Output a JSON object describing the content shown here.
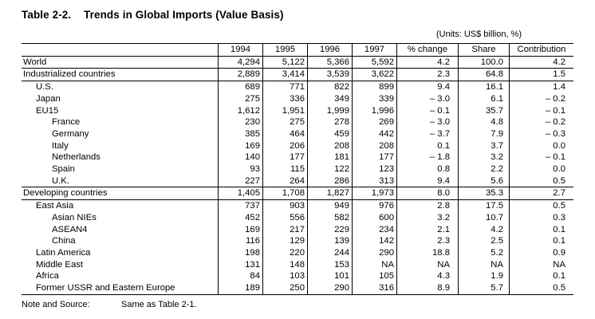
{
  "title": {
    "number": "Table 2-2.",
    "text": "Trends in Global Imports (Value Basis)"
  },
  "units": "(Units: US$ billion, %)",
  "columns": [
    "1994",
    "1995",
    "1996",
    "1997",
    "% change",
    "Share",
    "Contribution"
  ],
  "rows": [
    {
      "label": "World",
      "indent": 0,
      "sep": false,
      "values": [
        "4,294",
        "5,122",
        "5,366",
        "5,592",
        "4.2",
        "100.0",
        "4.2"
      ]
    },
    {
      "label": "Industrialized countries",
      "indent": 0,
      "sep": true,
      "values": [
        "2,889",
        "3,414",
        "3,539",
        "3,622",
        "2.3",
        "64.8",
        "1.5"
      ]
    },
    {
      "label": "U.S.",
      "indent": 1,
      "sep": true,
      "values": [
        "689",
        "771",
        "822",
        "899",
        "9.4",
        "16.1",
        "1.4"
      ]
    },
    {
      "label": "Japan",
      "indent": 1,
      "sep": false,
      "values": [
        "275",
        "336",
        "349",
        "339",
        "– 3.0",
        "6.1",
        "– 0.2"
      ]
    },
    {
      "label": "EU15",
      "indent": 1,
      "sep": false,
      "values": [
        "1,612",
        "1,951",
        "1,999",
        "1,996",
        "– 0.1",
        "35.7",
        "– 0.1"
      ]
    },
    {
      "label": "France",
      "indent": 2,
      "sep": false,
      "values": [
        "230",
        "275",
        "278",
        "269",
        "– 3.0",
        "4.8",
        "– 0.2"
      ]
    },
    {
      "label": "Germany",
      "indent": 2,
      "sep": false,
      "values": [
        "385",
        "464",
        "459",
        "442",
        "– 3.7",
        "7.9",
        "– 0.3"
      ]
    },
    {
      "label": "Italy",
      "indent": 2,
      "sep": false,
      "values": [
        "169",
        "206",
        "208",
        "208",
        "0.1",
        "3.7",
        "0.0"
      ]
    },
    {
      "label": "Netherlands",
      "indent": 2,
      "sep": false,
      "values": [
        "140",
        "177",
        "181",
        "177",
        "– 1.8",
        "3.2",
        "– 0.1"
      ]
    },
    {
      "label": "Spain",
      "indent": 2,
      "sep": false,
      "values": [
        "93",
        "115",
        "122",
        "123",
        "0.8",
        "2.2",
        "0.0"
      ]
    },
    {
      "label": "U.K.",
      "indent": 2,
      "sep": false,
      "values": [
        "227",
        "264",
        "286",
        "313",
        "9.4",
        "5.6",
        "0.5"
      ]
    },
    {
      "label": "Developing countries",
      "indent": 0,
      "sep": true,
      "values": [
        "1,405",
        "1,708",
        "1,827",
        "1,973",
        "8.0",
        "35.3",
        "2.7"
      ]
    },
    {
      "label": "East Asia",
      "indent": 1,
      "sep": true,
      "values": [
        "737",
        "903",
        "949",
        "976",
        "2.8",
        "17.5",
        "0.5"
      ]
    },
    {
      "label": "Asian NIEs",
      "indent": 2,
      "sep": false,
      "values": [
        "452",
        "556",
        "582",
        "600",
        "3.2",
        "10.7",
        "0.3"
      ]
    },
    {
      "label": "ASEAN4",
      "indent": 2,
      "sep": false,
      "values": [
        "169",
        "217",
        "229",
        "234",
        "2.1",
        "4.2",
        "0.1"
      ]
    },
    {
      "label": "China",
      "indent": 2,
      "sep": false,
      "values": [
        "116",
        "129",
        "139",
        "142",
        "2.3",
        "2.5",
        "0.1"
      ]
    },
    {
      "label": "Latin America",
      "indent": 1,
      "sep": false,
      "values": [
        "198",
        "220",
        "244",
        "290",
        "18.8",
        "5.2",
        "0.9"
      ]
    },
    {
      "label": "Middle East",
      "indent": 1,
      "sep": false,
      "values": [
        "131",
        "148",
        "153",
        "NA",
        "NA",
        "NA",
        "NA"
      ]
    },
    {
      "label": "Africa",
      "indent": 1,
      "sep": false,
      "values": [
        "84",
        "103",
        "101",
        "105",
        "4.3",
        "1.9",
        "0.1"
      ]
    },
    {
      "label": "Former USSR and Eastern Europe",
      "indent": 1,
      "sep": false,
      "values": [
        "189",
        "250",
        "290",
        "316",
        "8.9",
        "5.7",
        "0.5"
      ]
    }
  ],
  "note": {
    "label": "Note and Source:",
    "text": "Same as Table 2-1."
  }
}
